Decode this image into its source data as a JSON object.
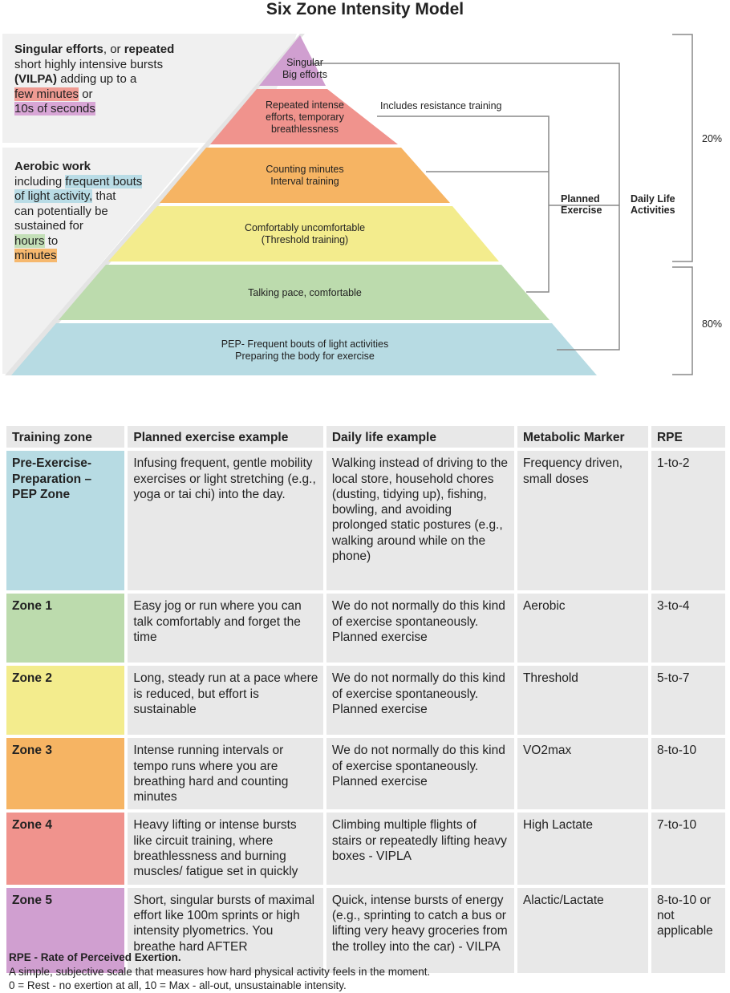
{
  "title": "Six Zone Intensity Model",
  "left_notes": {
    "top": {
      "l1a": "Singular efforts",
      "l1b": ", or ",
      "l1c": "repeated",
      "l2": "short highly intensive bursts",
      "l3a": "(VILPA)",
      "l3b": " adding up to a",
      "l4a": "few minutes",
      "l4b": " or",
      "l5": "10s of seconds"
    },
    "bottom": {
      "l1": "Aerobic work",
      "l2a": "including ",
      "l2b": "frequent bouts",
      "l3a": "of light activity,",
      "l3b": " that",
      "l4": "can potentially be",
      "l5": "sustained for",
      "l6a": "hours",
      "l6b": " to",
      "l7": "minutes"
    }
  },
  "pyramid": {
    "levels": [
      {
        "line1": "Singular",
        "line2": "Big efforts",
        "line3": "",
        "color": "#d09fd0"
      },
      {
        "line1": "Repeated intense",
        "line2": "efforts, temporary",
        "line3": "breathlessness",
        "color": "#f0938d"
      },
      {
        "line1": "Counting minutes",
        "line2": "Interval training",
        "line3": "",
        "color": "#f6b463"
      },
      {
        "line1": "Comfortably uncomfortable",
        "line2": "(Threshold training)",
        "line3": "",
        "color": "#f3ec8d"
      },
      {
        "line1": "Talking pace, comfortable",
        "line2": "",
        "line3": "",
        "color": "#bcdbad"
      },
      {
        "line1": "PEP- Frequent bouts of light activities",
        "line2": "Preparing the body for exercise",
        "line3": "",
        "color": "#b7dbe3"
      }
    ]
  },
  "annotations": {
    "resistance": "Includes resistance training",
    "planned_line1": "Planned",
    "planned_line2": "Exercise",
    "daily_line1": "Daily Life",
    "daily_line2": "Activities",
    "pct_top": "20%",
    "pct_bottom": "80%"
  },
  "table": {
    "headers": [
      "Training zone",
      "Planned exercise example",
      "Daily life example",
      "Metabolic Marker",
      "RPE"
    ],
    "rows": [
      {
        "zone": "Pre-Exercise-Preparation – PEP Zone",
        "zone_color": "#b7dbe3",
        "planned": "Infusing frequent, gentle mobility exercises or light stretching (e.g., yoga or tai chi) into the day.",
        "daily": "Walking instead of driving to the local store, household chores (dusting, tidying up), fishing, bowling, and avoiding prolonged static postures (e.g., walking around while on the phone)",
        "marker": "Frequency driven, small doses",
        "rpe": "1-to-2"
      },
      {
        "zone": "Zone 1",
        "zone_color": "#bcdbad",
        "planned": "Easy jog or run where you can talk comfortably and forget the time",
        "daily": "We do not normally do this kind of exercise spontaneously.  Planned exercise",
        "marker": "Aerobic",
        "rpe": "3-to-4"
      },
      {
        "zone": "Zone 2",
        "zone_color": "#f3ec8d",
        "planned": "Long, steady run at a pace where is reduced, but effort is sustainable",
        "daily": "We do not normally do this kind of exercise spontaneously.  Planned exercise",
        "marker": "Threshold",
        "rpe": "5-to-7"
      },
      {
        "zone": "Zone 3",
        "zone_color": "#f6b463",
        "planned": "Intense running intervals or tempo runs where you are breathing hard and counting minutes",
        "daily": "We do not normally do this kind of exercise spontaneously.  Planned exercise",
        "marker": "VO2max",
        "rpe": "8-to-10"
      },
      {
        "zone": "Zone 4",
        "zone_color": "#f0938d",
        "planned": "Heavy lifting or intense bursts like circuit training, where breathlessness and burning muscles/ fatigue set in quickly",
        "daily": "Climbing multiple flights of stairs or repeatedly lifting heavy boxes - VIPLA",
        "marker": "High Lactate",
        "rpe": "7-to-10"
      },
      {
        "zone": "Zone 5",
        "zone_color": "#d09fd0",
        "planned": "Short, singular bursts of maximal effort like 100m sprints or high intensity plyometrics. You breathe hard AFTER",
        "daily": "Quick, intense bursts of energy (e.g., sprinting to catch a bus or lifting very heavy groceries from the trolley into the car) - VILPA",
        "marker": "Alactic/Lactate",
        "rpe": "8-to-10 or not applicable"
      }
    ]
  },
  "footer": {
    "heading": "RPE - Rate of Perceived Exertion.",
    "line1": "A simple, subjective scale that measures how hard physical activity feels in the moment.",
    "line2": "0 = Rest - no exertion at all, 10 = Max - all-out, unsustainable intensity."
  }
}
